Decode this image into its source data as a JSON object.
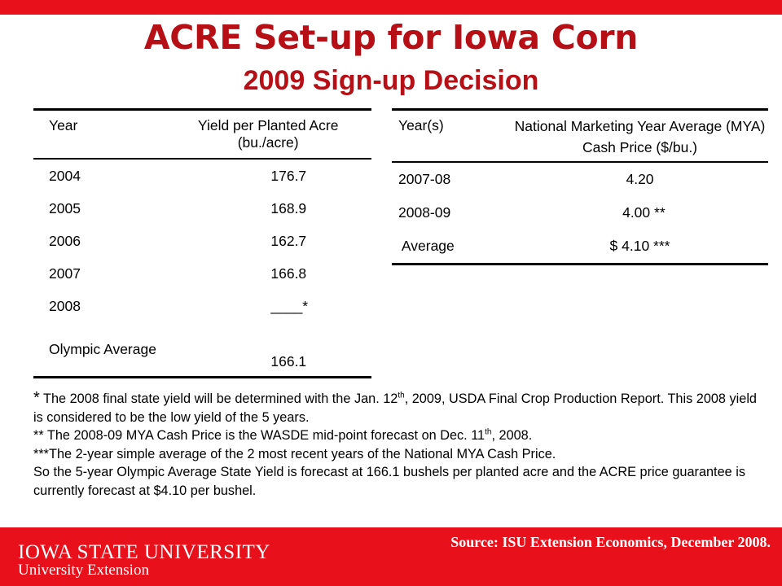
{
  "title": "ACRE Set-up for Iowa Corn",
  "subtitle": "2009 Sign-up Decision",
  "yield_table": {
    "col_year": "Year",
    "col_yield": "Yield per Planted Acre (bu./acre)",
    "rows": [
      {
        "year": "2004",
        "value": "176.7"
      },
      {
        "year": "2005",
        "value": "168.9"
      },
      {
        "year": "2006",
        "value": "162.7"
      },
      {
        "year": "2007",
        "value": "166.8"
      },
      {
        "year": "2008",
        "value": "____*"
      }
    ],
    "olympic_label": "Olympic Average",
    "olympic_value": "166.1"
  },
  "price_table": {
    "col_years": "Year(s)",
    "col_price": "National Marketing Year Average (MYA) Cash Price ($/bu.)",
    "rows": [
      {
        "year": "2007-08",
        "value": "4.20"
      },
      {
        "year": "2008-09",
        "value": "  4.00 **"
      },
      {
        "year": " Average",
        "value": "$ 4.10 ***"
      }
    ]
  },
  "notes": {
    "star": "*",
    "n1_a": " The 2008 final state yield will be determined with the Jan. 12",
    "n1_sup": "th",
    "n1_b": ", 2009, USDA Final Crop Production Report.  This 2008 yield is considered to be the low yield of the 5 years.",
    "n2_a": "** The 2008-09 MYA Cash Price is the WASDE mid-point forecast on Dec. 11",
    "n2_sup": "th",
    "n2_b": ", 2008.",
    "n3": "***The 2-year simple average of the 2 most recent years of the National MYA Cash Price.",
    "n4": "So the 5-year Olympic Average State Yield is forecast at 166.1 bushels per planted acre and the ACRE price guarantee is currently forecast at $4.10 per bushel."
  },
  "footer": {
    "logo_main": "IOWA STATE UNIVERSITY",
    "logo_sub": "University Extension",
    "source": "Source:  ISU Extension Economics, December 2008."
  }
}
